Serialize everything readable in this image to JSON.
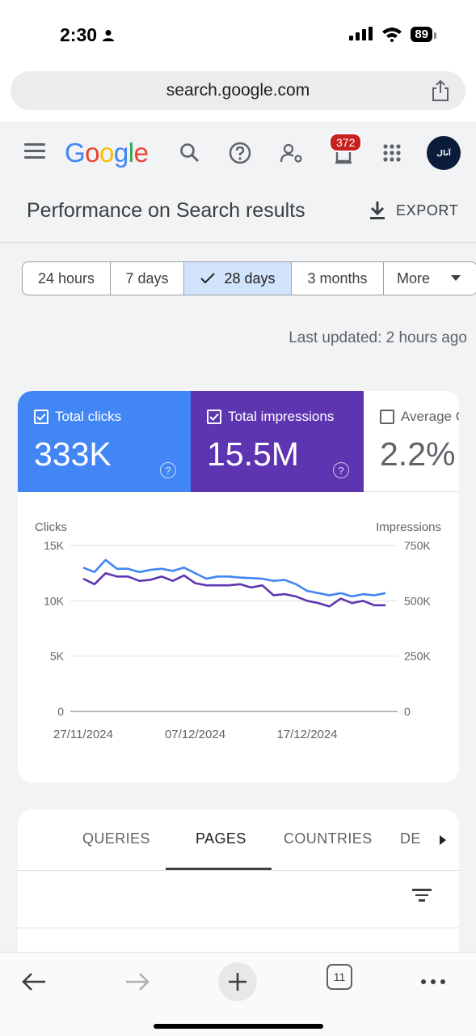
{
  "status": {
    "time": "2:30",
    "battery": "89"
  },
  "browser": {
    "url": "search.google.com",
    "tabs_count": "11"
  },
  "header": {
    "logo": [
      "G",
      "o",
      "o",
      "g",
      "l",
      "e"
    ],
    "notifications": "372",
    "avatar_text": "ﺁﻧﺎﻝ"
  },
  "page": {
    "title": "Performance on Search results",
    "export_label": "EXPORT",
    "ranges": [
      {
        "label": "24 hours",
        "selected": false
      },
      {
        "label": "7 days",
        "selected": false
      },
      {
        "label": "28 days",
        "selected": true
      },
      {
        "label": "3 months",
        "selected": false
      },
      {
        "label": "More",
        "selected": false
      }
    ],
    "last_updated": "Last updated: 2 hours ago"
  },
  "metrics": {
    "clicks": {
      "label": "Total clicks",
      "value": "333K",
      "checked": true,
      "color": "#4285f4"
    },
    "impressions": {
      "label": "Total impressions",
      "value": "15.5M",
      "checked": true,
      "color": "#5e35b1"
    },
    "ctr": {
      "label": "Average CTR",
      "value": "2.2%",
      "checked": false
    }
  },
  "chart_data": {
    "type": "line",
    "left_axis_label": "Clicks",
    "right_axis_label": "Impressions",
    "left_ticks": [
      "0",
      "5K",
      "10K",
      "15K"
    ],
    "right_ticks": [
      "0",
      "250K",
      "500K",
      "750K"
    ],
    "ylim_left": [
      0,
      15000
    ],
    "ylim_right": [
      0,
      750000
    ],
    "x_labels": [
      "27/11/2024",
      "07/12/2024",
      "17/12/2024"
    ],
    "x": [
      "2024-11-27",
      "2024-11-28",
      "2024-11-29",
      "2024-11-30",
      "2024-12-01",
      "2024-12-02",
      "2024-12-03",
      "2024-12-04",
      "2024-12-05",
      "2024-12-06",
      "2024-12-07",
      "2024-12-08",
      "2024-12-09",
      "2024-12-10",
      "2024-12-11",
      "2024-12-12",
      "2024-12-13",
      "2024-12-14",
      "2024-12-15",
      "2024-12-16",
      "2024-12-17",
      "2024-12-18",
      "2024-12-19",
      "2024-12-20",
      "2024-12-21",
      "2024-12-22",
      "2024-12-23",
      "2024-12-24"
    ],
    "series": [
      {
        "axis": "left",
        "color": "#4285f4",
        "values": [
          13000,
          12600,
          13700,
          12900,
          12900,
          12600,
          12800,
          12900,
          12700,
          13000,
          12500,
          12000,
          12200,
          12200,
          12100,
          12050,
          12000,
          11800,
          11900,
          11500,
          10900,
          10700,
          10500,
          10700,
          10400,
          10600,
          10500,
          10700
        ]
      },
      {
        "axis": "right",
        "color": "#5e35b1",
        "values": [
          600000,
          575000,
          625000,
          610000,
          610000,
          590000,
          595000,
          610000,
          590000,
          615000,
          580000,
          570000,
          570000,
          570000,
          575000,
          560000,
          570000,
          525000,
          530000,
          520000,
          500000,
          490000,
          475000,
          510000,
          490000,
          500000,
          480000,
          480000
        ]
      }
    ],
    "grid": true
  },
  "tabs": {
    "items": [
      "QUERIES",
      "PAGES",
      "COUNTRIES",
      "DE"
    ],
    "active": "PAGES"
  }
}
